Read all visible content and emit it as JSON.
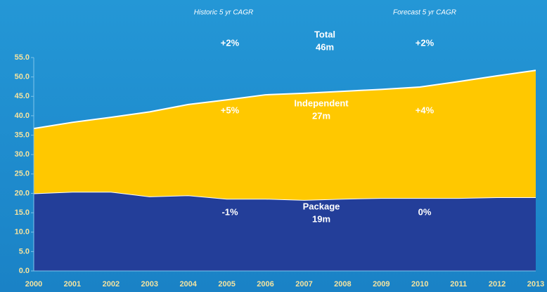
{
  "chart_data": {
    "type": "stacked_area",
    "categories": [
      "2000",
      "2001",
      "2002",
      "2003",
      "2004",
      "2005",
      "2006",
      "2007",
      "2008",
      "2009",
      "2010",
      "2011",
      "2012",
      "2013"
    ],
    "series": [
      {
        "name": "Package",
        "color": "#233e99",
        "values": [
          20.0,
          20.4,
          20.4,
          19.2,
          19.5,
          18.6,
          18.6,
          18.3,
          18.6,
          18.8,
          18.8,
          18.8,
          19.0,
          19.0
        ]
      },
      {
        "name": "Independent",
        "color": "#ffc800",
        "values": [
          16.7,
          17.9,
          19.2,
          21.8,
          23.4,
          25.5,
          26.8,
          27.5,
          27.7,
          28.0,
          28.6,
          30.0,
          31.3,
          32.7
        ]
      }
    ],
    "ylim": [
      0,
      55
    ],
    "yticks": [
      {
        "value": 0,
        "label": "0.0"
      },
      {
        "value": 5,
        "label": "5.0"
      },
      {
        "value": 10,
        "label": "10.0"
      },
      {
        "value": 15,
        "label": "15.0"
      },
      {
        "value": 20,
        "label": "20.0"
      },
      {
        "value": 25,
        "label": "25.0"
      },
      {
        "value": 30,
        "label": "30.0"
      },
      {
        "value": 35,
        "label": "35.0"
      },
      {
        "value": 40,
        "label": "40.0"
      },
      {
        "value": 45,
        "label": "45.0"
      },
      {
        "value": 50,
        "label": "50.0"
      },
      {
        "value": 55,
        "label": "55.0"
      }
    ],
    "annotations": [
      "Historic 5 yr CAGR",
      "Forecast 5 yr CAGR",
      "+2%",
      "Total",
      "46m",
      "+2%",
      "+5%",
      "Independent",
      "27m",
      "+4%",
      "-1%",
      "Package",
      "19m",
      "0%"
    ]
  }
}
